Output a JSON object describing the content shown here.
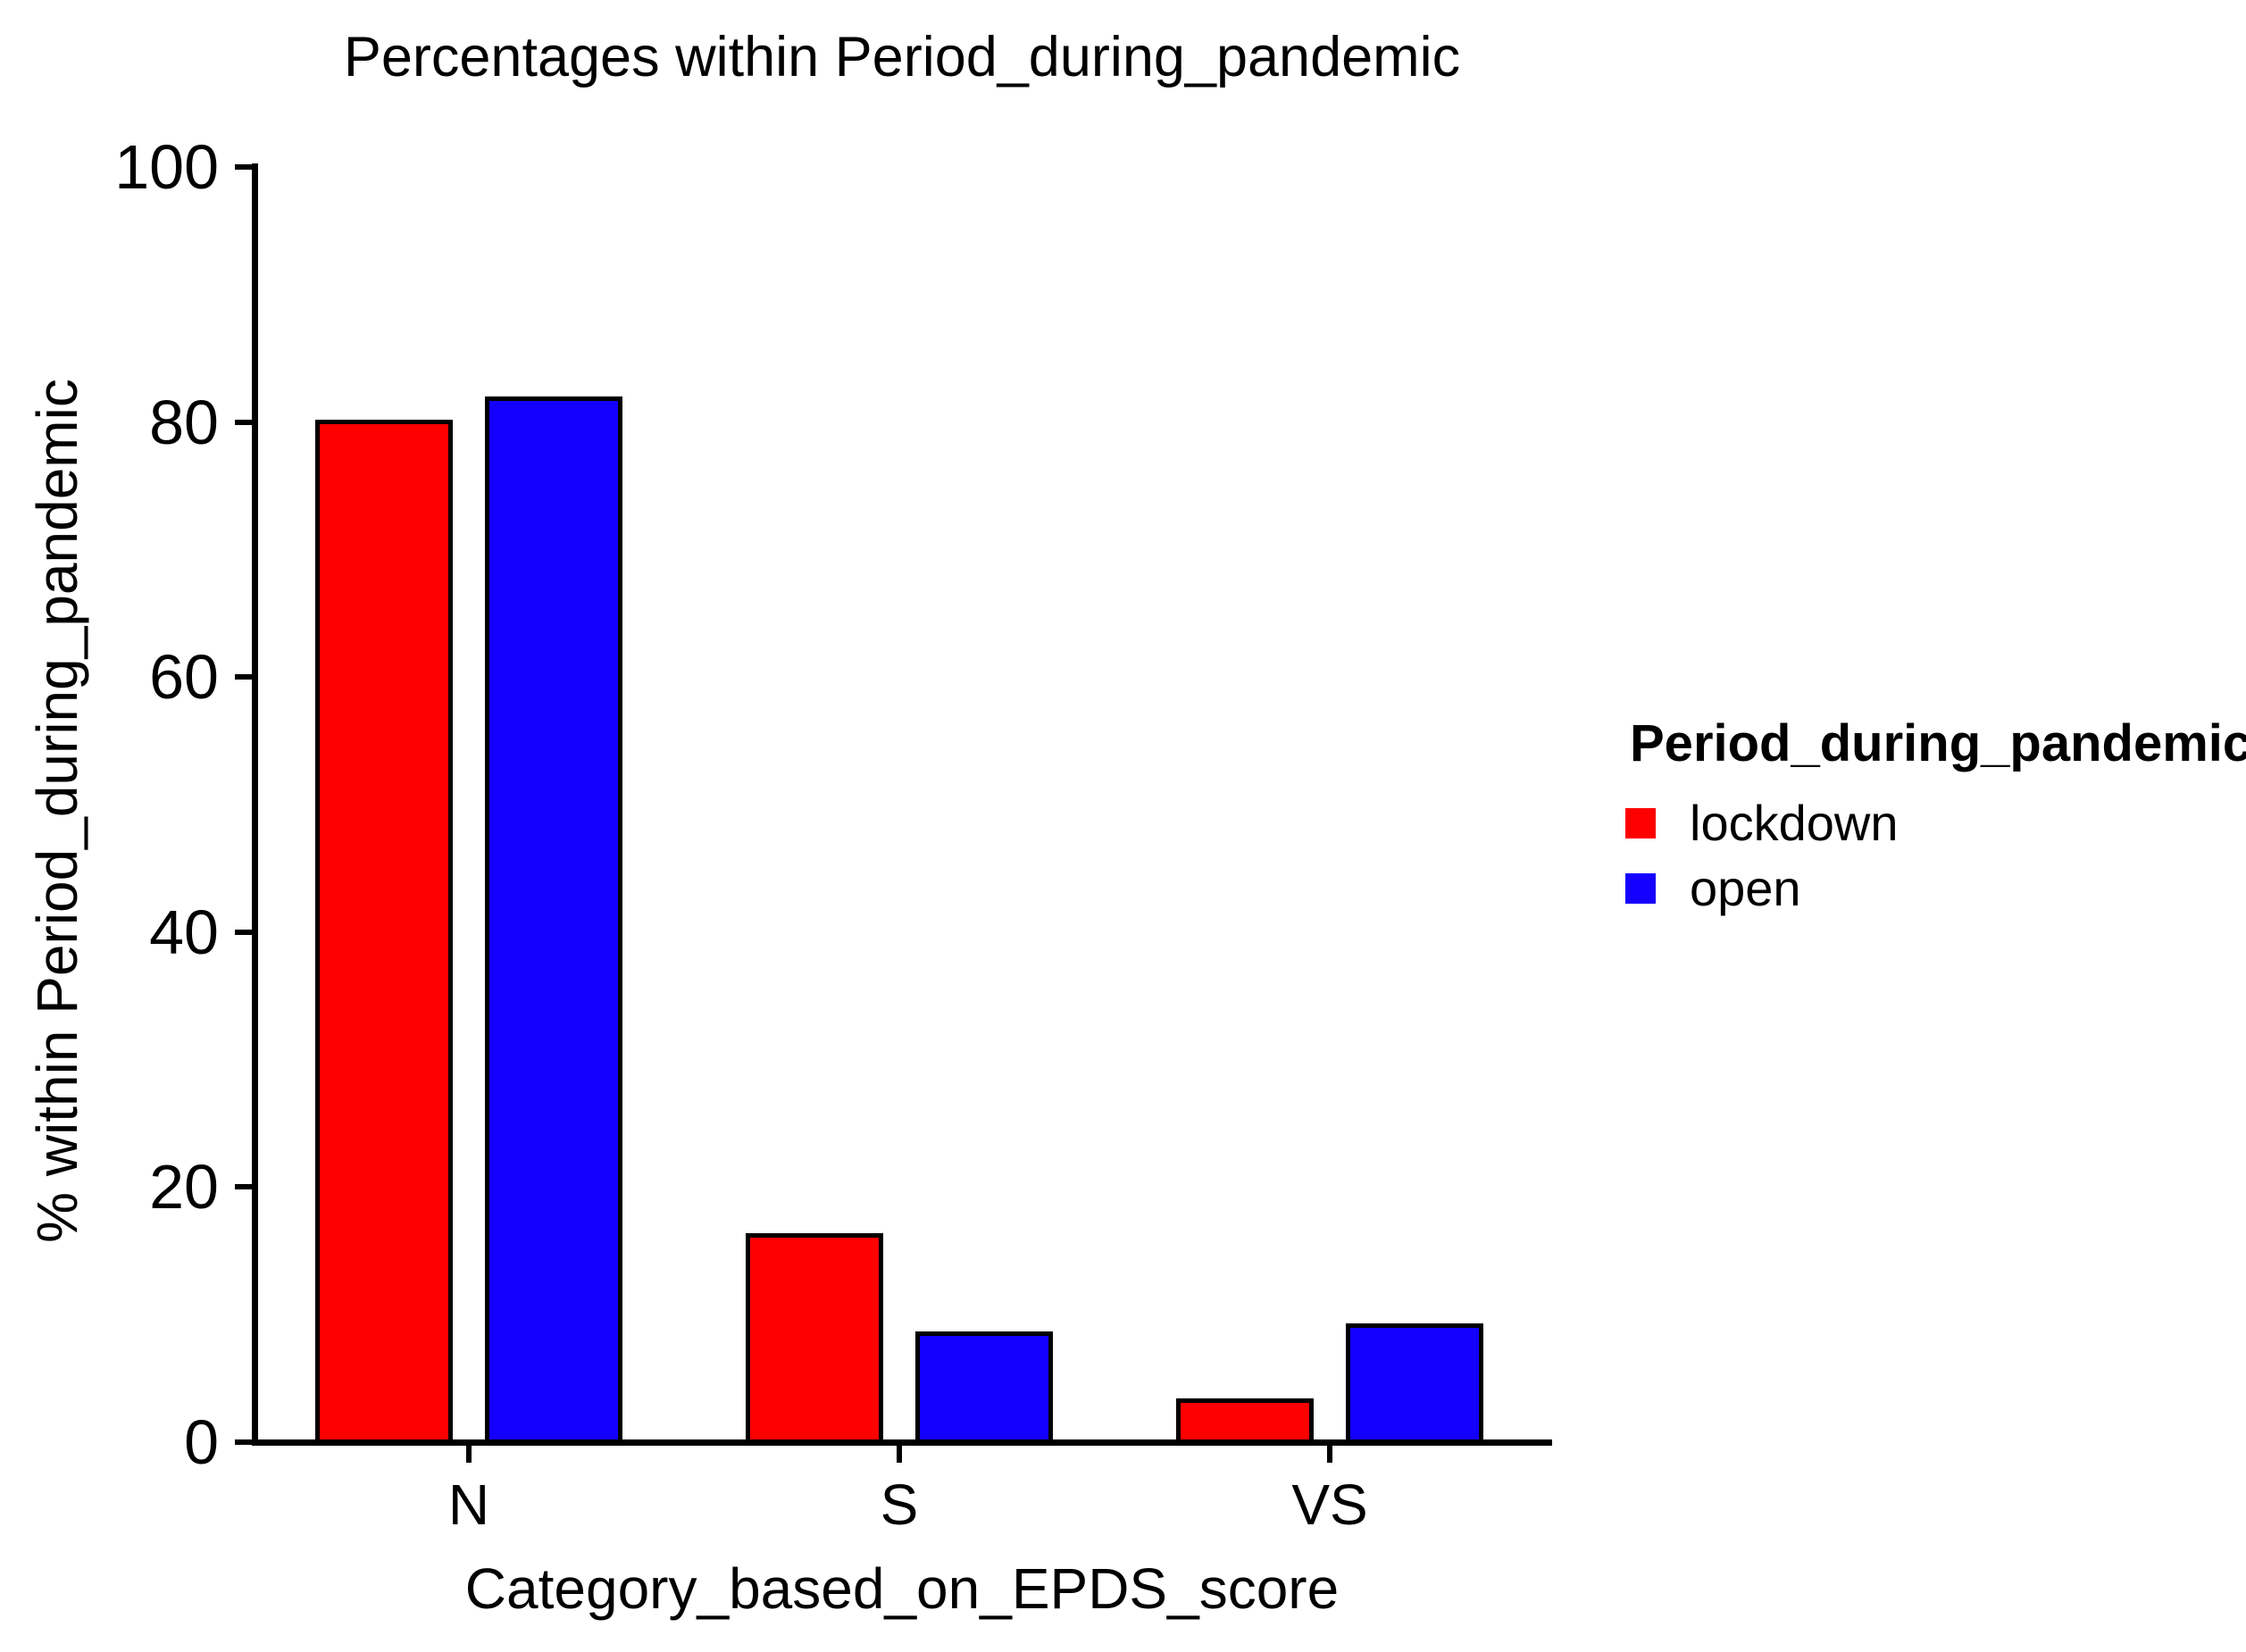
{
  "chart": {
    "title": "Percentages within Period_during_pandemic",
    "y_axis_title": "% within Period_during_pandemic",
    "x_axis_title": "Category_based_on_EPDS_score"
  },
  "legend": {
    "title": "Period_during_pandemic",
    "items": [
      {
        "label": "lockdown",
        "color": "#ff0000"
      },
      {
        "label": "open",
        "color": "#1400ff"
      }
    ]
  },
  "chart_data": {
    "type": "bar",
    "title": "Percentages within Period_during_pandemic",
    "xlabel": "Category_based_on_EPDS_score",
    "ylabel": "% within Period_during_pandemic",
    "categories": [
      "N",
      "S",
      "VS"
    ],
    "series": [
      {
        "name": "lockdown",
        "color": "#ff0000",
        "values": [
          80.2,
          16.4,
          3.4
        ]
      },
      {
        "name": "open",
        "color": "#1400ff",
        "values": [
          82.0,
          8.7,
          9.3
        ]
      }
    ],
    "ylim": [
      0,
      100
    ],
    "yticks": [
      0,
      20,
      40,
      60,
      80,
      100
    ],
    "grid": false,
    "legend_position": "right",
    "bar_edge_color": "#000000",
    "background_color": "#ffffff"
  }
}
